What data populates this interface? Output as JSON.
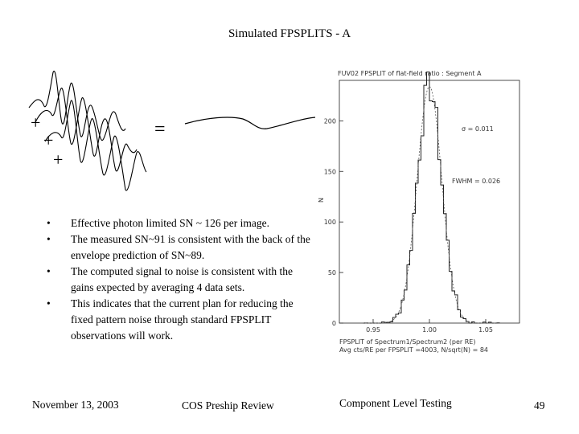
{
  "slide": {
    "title": "Simulated FPSPLITS - A",
    "bullets": [
      "Effective photon limited SN ~ 126 per image.",
      "The measured SN~91 is consistent with the back of the envelope prediction of SN~89.",
      "The computed signal to noise is consistent with the gains expected by averaging 4 data sets.",
      "This indicates that the current plan for reducing the fixed pattern noise through standard FPSPLIT observations will work."
    ],
    "equation": {
      "plus": "+",
      "equals": "="
    }
  },
  "footer": {
    "date": "November 13, 2003",
    "review": "COS Preship Review",
    "section": "Component Level Testing",
    "page": "49"
  },
  "histogram": {
    "title": "FUV02 FPSPLIT of flat-field ratio : Segment A",
    "ylabel": "N",
    "xlabel": "FPSPLIT of Spectrum1/Spectrum2 (per RE)",
    "caption": "Avg cts/RE per FPSPLIT =4003, N/sqrt(N) = 84",
    "annotation_sigma": "σ = 0.011",
    "annotation_fwhm": "FWHM = 0.026",
    "x_ticks": [
      "0.95",
      "1.00",
      "1.05"
    ],
    "y_ticks": [
      "0",
      "50",
      "100",
      "150",
      "200"
    ],
    "xlim": [
      0.92,
      1.08
    ],
    "ylim": [
      0,
      240
    ],
    "center": 1.0,
    "sigma": 0.011,
    "peak": 234,
    "colors": {
      "stroke": "#222222",
      "text": "#333333"
    }
  }
}
